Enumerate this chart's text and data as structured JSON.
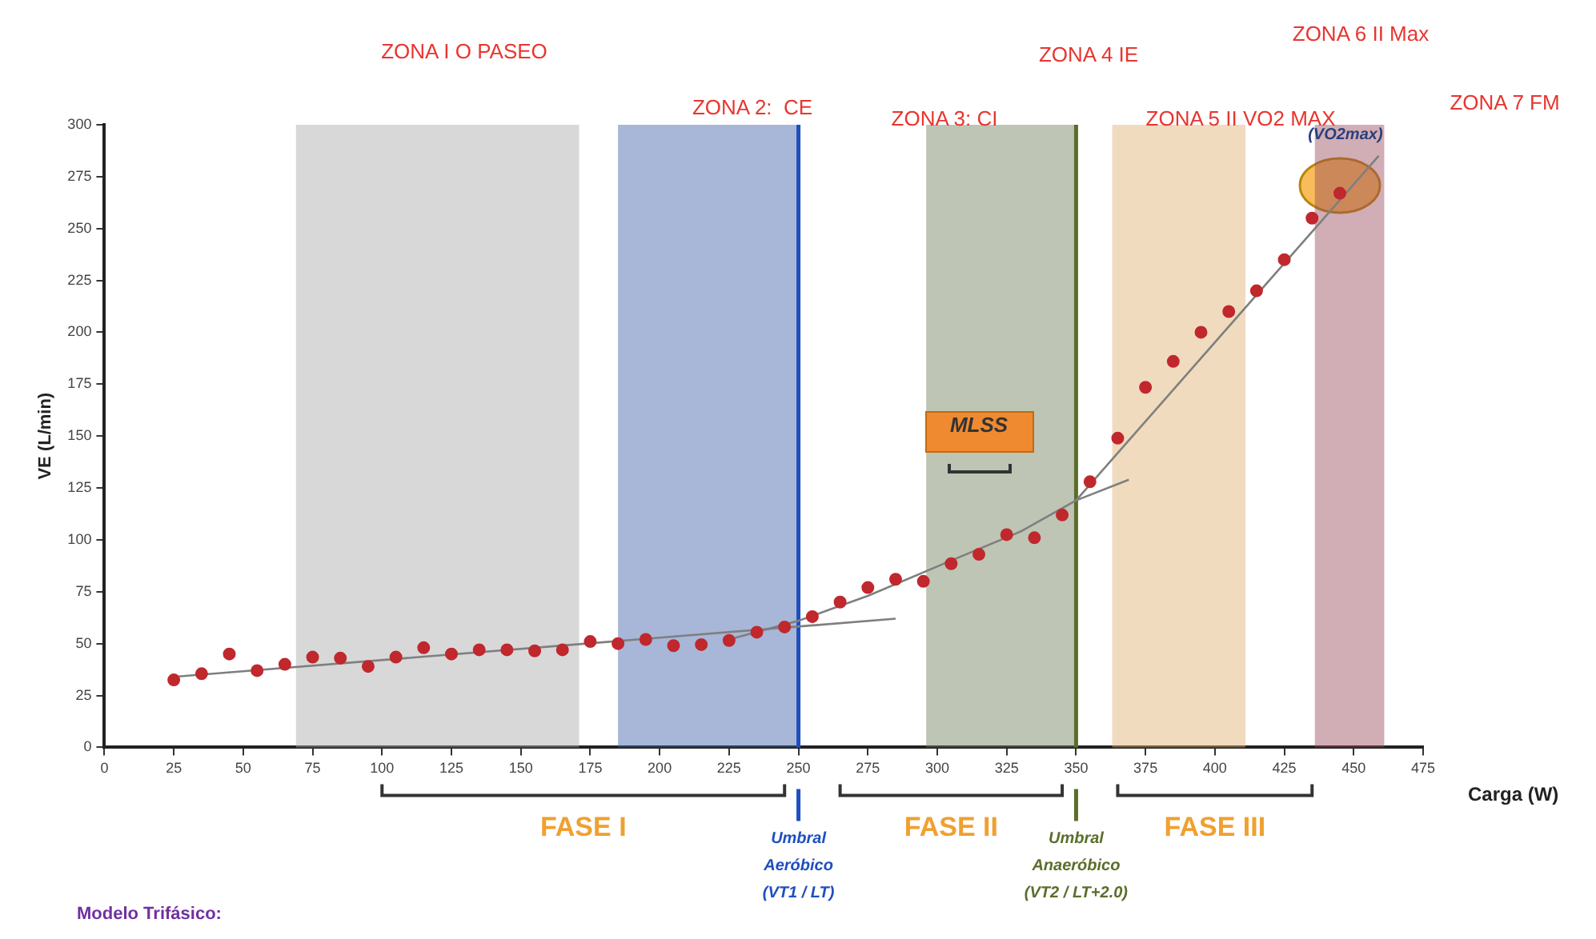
{
  "chart_data": {
    "type": "scatter",
    "xlabel": "Carga (W)",
    "ylabel": "VE (L/min)",
    "xlim": [
      0,
      475
    ],
    "xticks": [
      0,
      25,
      50,
      75,
      100,
      125,
      150,
      175,
      200,
      225,
      250,
      275,
      300,
      325,
      350,
      375,
      400,
      425,
      450,
      475
    ],
    "ylim": [
      0,
      300
    ],
    "yticks": [
      0,
      25,
      50,
      75,
      100,
      125,
      150,
      175,
      200,
      225,
      250,
      275,
      300
    ],
    "grid": false,
    "legend": false,
    "series": [
      {
        "type": "scatter",
        "marker": "circle",
        "color": "#c0282d",
        "x": [
          25,
          35,
          45,
          55,
          65,
          75,
          85,
          95,
          105,
          115,
          125,
          135,
          145,
          155,
          165,
          175,
          185,
          195,
          205,
          215,
          225,
          235,
          245,
          255,
          265,
          275,
          285,
          295,
          305,
          315,
          325,
          335,
          345,
          355,
          365,
          375,
          385,
          395,
          405,
          415,
          425,
          435,
          445
        ],
        "values": [
          32.5,
          35.5,
          45,
          37,
          40,
          43.5,
          43,
          39,
          43.5,
          48,
          45,
          47,
          47,
          46.5,
          47,
          51,
          50,
          52,
          49,
          49.5,
          51.5,
          55.5,
          58,
          63,
          70,
          77,
          81,
          80,
          88.5,
          93,
          102.5,
          101,
          112,
          128,
          149,
          173.5,
          186,
          200,
          210,
          220,
          235,
          255,
          267
        ]
      },
      {
        "type": "line",
        "color": "#7f7f7f",
        "x": [
          25,
          285
        ],
        "values": [
          34,
          62
        ]
      },
      {
        "type": "line",
        "color": "#7f7f7f",
        "x": [
          225,
          250,
          275,
          305,
          330,
          350,
          369
        ],
        "values": [
          52,
          61,
          73,
          90,
          104,
          119,
          129
        ]
      },
      {
        "type": "line",
        "color": "#7f7f7f",
        "x": [
          350,
          459
        ],
        "values": [
          119,
          285
        ]
      }
    ],
    "bands": [
      {
        "axis": "x",
        "from": 69,
        "to": 171,
        "color": "#a8a8a8"
      },
      {
        "axis": "x",
        "from": 185,
        "to": 250,
        "color": "#3f5fa8"
      },
      {
        "axis": "x",
        "from": 296,
        "to": 350,
        "color": "#6f7f5a"
      },
      {
        "axis": "x",
        "from": 363,
        "to": 411,
        "color": "#e0b070"
      },
      {
        "axis": "x",
        "from": 436,
        "to": 461,
        "color": "#9a4a5a"
      }
    ],
    "ref_lines": [
      {
        "axis": "x",
        "value": 250,
        "label": "Umbral\nAeróbico\n(VT1 / LT)",
        "color": "#1f4fbf"
      },
      {
        "axis": "x",
        "value": 350,
        "label": "Umbral\nAnaeróbico\n(VT2 / LT+2.0)",
        "color": "#5a6e2a"
      }
    ],
    "annotations": [
      "ZONA I O PASEO",
      "ZONA 2:  CE",
      "ZONA 3: CI",
      "ZONA 4 IE",
      "ZONA 5 II VO2 MAX",
      "ZONA 6 II Max",
      "ZONA 7 FM",
      "Modelo Trifásico:",
      "FASE I",
      "FASE II",
      "FASE III",
      "MLSS",
      "(VO2max)"
    ]
  }
}
